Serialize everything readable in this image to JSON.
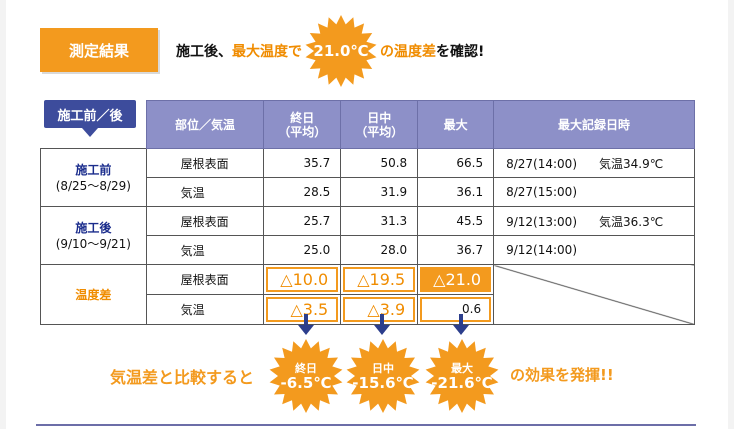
{
  "header": {
    "result_tag": "測定結果",
    "headline_pre": "施工後、",
    "headline_hl": "最大温度で",
    "headline_value": "21.0℃",
    "headline_hl2": "の温度差",
    "headline_post": "を確認!"
  },
  "table": {
    "tag": "施工前／後",
    "columns": [
      "部位／気温",
      "終日\n（平均）",
      "日中\n（平均）",
      "最大",
      "最大記録日時"
    ],
    "groups": [
      {
        "name": "施工前",
        "period": "(8/25～8/29)",
        "rows": [
          {
            "part": "屋根表面",
            "allday": "35.7",
            "daytime": "50.8",
            "max": "66.5",
            "date": "8/27(14:00)",
            "note": "気温34.9℃"
          },
          {
            "part": "気温",
            "allday": "28.5",
            "daytime": "31.9",
            "max": "36.1",
            "date": "8/27(15:00)",
            "note": ""
          }
        ]
      },
      {
        "name": "施工後",
        "period": "(9/10～9/21)",
        "rows": [
          {
            "part": "屋根表面",
            "allday": "25.7",
            "daytime": "31.3",
            "max": "45.5",
            "date": "9/12(13:00)",
            "note": "気温36.3℃"
          },
          {
            "part": "気温",
            "allday": "25.0",
            "daytime": "28.0",
            "max": "36.7",
            "date": "9/12(14:00)",
            "note": ""
          }
        ]
      }
    ],
    "diff": {
      "name": "温度差",
      "rows": [
        {
          "part": "屋根表面",
          "allday": "△10.0",
          "daytime": "△19.5",
          "max": "△21.0"
        },
        {
          "part": "気温",
          "allday": "△3.5",
          "daytime": "△3.9",
          "max": "0.6"
        }
      ]
    }
  },
  "summary": {
    "lead": "気温差と比較すると",
    "tail": "の効果を発揮!!",
    "bursts": [
      {
        "label": "終日",
        "value": "-6.5℃"
      },
      {
        "label": "日中",
        "value": "-15.6℃"
      },
      {
        "label": "最大",
        "value": "-21.6℃"
      }
    ]
  },
  "colors": {
    "accent": "#f39a1e",
    "navy": "#3d4c9c",
    "header_purple": "#8d90c8"
  }
}
